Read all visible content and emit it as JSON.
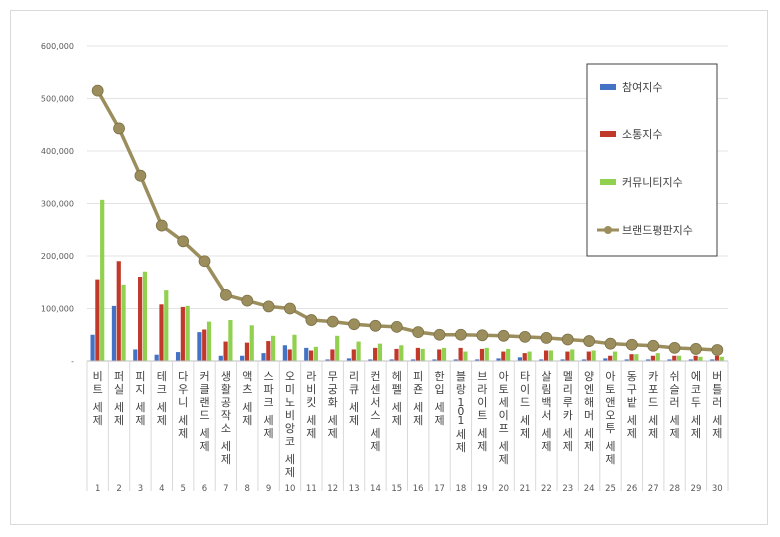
{
  "chart_data": {
    "type": "bar",
    "title": "",
    "xlabel": "",
    "ylabel": "",
    "ylim": [
      0,
      600000
    ],
    "yticks": [
      "-",
      "100,000",
      "200,000",
      "300,000",
      "400,000",
      "500,000",
      "600,000"
    ],
    "grid": true,
    "legend_position": "top-right",
    "categories": [
      "비트 세제",
      "퍼실 세제",
      "피지 세제",
      "테크 세제",
      "다우니 세제",
      "커클랜드 세제",
      "생활공작소 세제",
      "액츠 세제",
      "스파크 세제",
      "오미노비앙코 세제",
      "라비킷 세제",
      "무궁화 세제",
      "리큐 세제",
      "컨센서스 세제",
      "헤펠 세제",
      "피죤 세제",
      "한입 세제",
      "블랑101 세제",
      "브라이트 세제",
      "아토세이프 세제",
      "타이드 세제",
      "살림백서 세제",
      "멜리루카 세제",
      "양엔해머 세제",
      "아토앤오투 세제",
      "동구밭 세제",
      "카포드 세제",
      "쉬슬러 세제",
      "에코두 세제",
      "버틀러 세제"
    ],
    "ranks": [
      "1",
      "2",
      "3",
      "4",
      "5",
      "6",
      "7",
      "8",
      "9",
      "10",
      "11",
      "12",
      "13",
      "14",
      "15",
      "16",
      "17",
      "18",
      "19",
      "20",
      "21",
      "22",
      "23",
      "24",
      "25",
      "26",
      "27",
      "28",
      "29",
      "30"
    ],
    "series": [
      {
        "name": "참여지수",
        "kind": "bar",
        "color": "#4472c4",
        "values": [
          50000,
          105000,
          22000,
          12000,
          17000,
          55000,
          10000,
          10000,
          15000,
          30000,
          25000,
          3000,
          5000,
          3000,
          3000,
          3000,
          3000,
          3000,
          3000,
          5000,
          7000,
          3000,
          3000,
          3000,
          5000,
          3000,
          3000,
          3000,
          3000,
          3000
        ]
      },
      {
        "name": "소통지수",
        "kind": "bar",
        "color": "#c0392b",
        "values": [
          155000,
          190000,
          160000,
          108000,
          103000,
          60000,
          37000,
          35000,
          38000,
          22000,
          20000,
          22000,
          22000,
          25000,
          23000,
          25000,
          22000,
          25000,
          23000,
          18000,
          15000,
          20000,
          18000,
          18000,
          10000,
          13000,
          10000,
          10000,
          10000,
          10000
        ]
      },
      {
        "name": "커뮤니티지수",
        "kind": "bar",
        "color": "#92d050",
        "values": [
          307000,
          145000,
          170000,
          135000,
          105000,
          75000,
          78000,
          68000,
          48000,
          50000,
          27000,
          48000,
          37000,
          33000,
          30000,
          23000,
          25000,
          18000,
          25000,
          23000,
          18000,
          20000,
          22000,
          20000,
          18000,
          13000,
          15000,
          10000,
          8000,
          8000
        ]
      },
      {
        "name": "브랜드평판지수",
        "kind": "line",
        "color": "#9b8e5c",
        "values": [
          515000,
          443000,
          353000,
          258000,
          228000,
          190000,
          126000,
          115000,
          104000,
          100000,
          78000,
          75000,
          70000,
          67000,
          65000,
          55000,
          50000,
          50000,
          49000,
          48000,
          46000,
          44000,
          41000,
          38000,
          33000,
          31000,
          29000,
          25000,
          23000,
          21000
        ]
      }
    ]
  }
}
